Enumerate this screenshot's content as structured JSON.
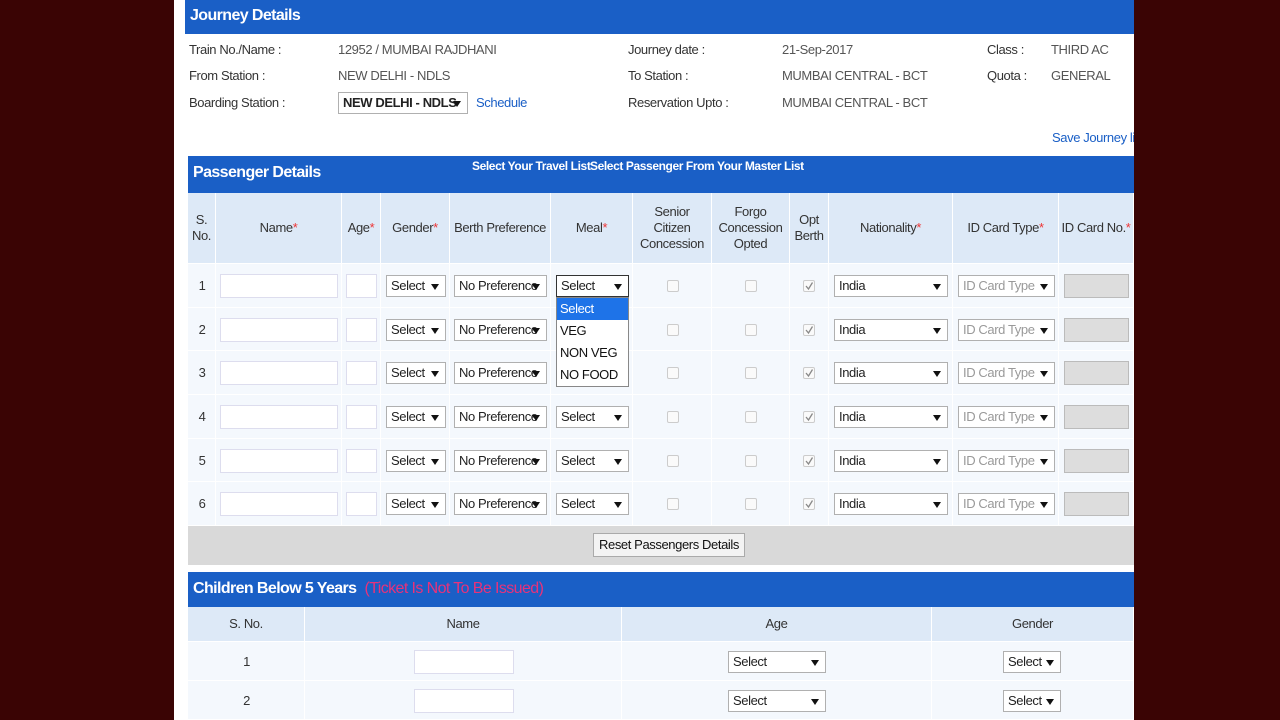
{
  "journey_details": {
    "title": "Journey Details",
    "fields": [
      {
        "label": "Train No./Name :",
        "value": "12952 / MUMBAI RAJDHANI"
      },
      {
        "label": "From Station :",
        "value": "NEW DELHI - NDLS"
      },
      {
        "label": "Boarding Station :",
        "value": "NEW DELHI - NDLS",
        "link": "Schedule"
      },
      {
        "label": "Journey date :",
        "value": "21-Sep-2017"
      },
      {
        "label": "To Station :",
        "value": "MUMBAI CENTRAL - BCT"
      },
      {
        "label": "Reservation Upto :",
        "value": "MUMBAI CENTRAL - BCT"
      },
      {
        "label": "Class :",
        "value": "THIRD AC"
      },
      {
        "label": "Quota :",
        "value": "GENERAL"
      }
    ],
    "save_link": "Save Journey list"
  },
  "passenger_details": {
    "title": "Passenger Details",
    "links": [
      "Select Your Travel List",
      "Select Passenger From Your Master List"
    ],
    "columns": [
      {
        "label": "S. No."
      },
      {
        "label": "Name",
        "required": "*"
      },
      {
        "label": "Age",
        "required": "*"
      },
      {
        "label": "Gender",
        "required": "*"
      },
      {
        "label": "Berth Preference"
      },
      {
        "label": "Meal",
        "required": "*"
      },
      {
        "label": "Senior Citizen Concession"
      },
      {
        "label": "Forgo Concession Opted"
      },
      {
        "label": "Opt Berth"
      },
      {
        "label": "Nationality",
        "required": "*"
      },
      {
        "label": "ID Card Type",
        "required": "*"
      },
      {
        "label": "ID Card No.",
        "required": "*"
      }
    ],
    "rows": [
      {
        "sno": 1,
        "gender": "Select",
        "berth": "No Preference",
        "meal": "Select",
        "nationality": "India",
        "id_card_type": "ID Card Type"
      },
      {
        "sno": 2,
        "gender": "Select",
        "berth": "No Preference",
        "meal": "Select",
        "nationality": "India",
        "id_card_type": "ID Card Type"
      },
      {
        "sno": 3,
        "gender": "Select",
        "berth": "No Preference",
        "meal": "Select",
        "nationality": "India",
        "id_card_type": "ID Card Type"
      },
      {
        "sno": 4,
        "gender": "Select",
        "berth": "No Preference",
        "meal": "Select",
        "nationality": "India",
        "id_card_type": "ID Card Type"
      },
      {
        "sno": 5,
        "gender": "Select",
        "berth": "No Preference",
        "meal": "Select",
        "nationality": "India",
        "id_card_type": "ID Card Type"
      },
      {
        "sno": 6,
        "gender": "Select",
        "berth": "No Preference",
        "meal": "Select",
        "nationality": "India",
        "id_card_type": "ID Card Type"
      }
    ],
    "meal_options": [
      "Select",
      "VEG",
      "NON VEG",
      "NO FOOD"
    ],
    "reset_button": "Reset Passengers Details"
  },
  "children": {
    "title": "Children Below 5 Years",
    "note": "(Ticket Is Not To Be Issued)",
    "columns": [
      "S. No.",
      "Name",
      "Age",
      "Gender"
    ],
    "rows": [
      {
        "sno": 1,
        "age": "Select",
        "gender": "Select"
      },
      {
        "sno": 2,
        "age": "Select",
        "gender": "Select"
      }
    ]
  }
}
